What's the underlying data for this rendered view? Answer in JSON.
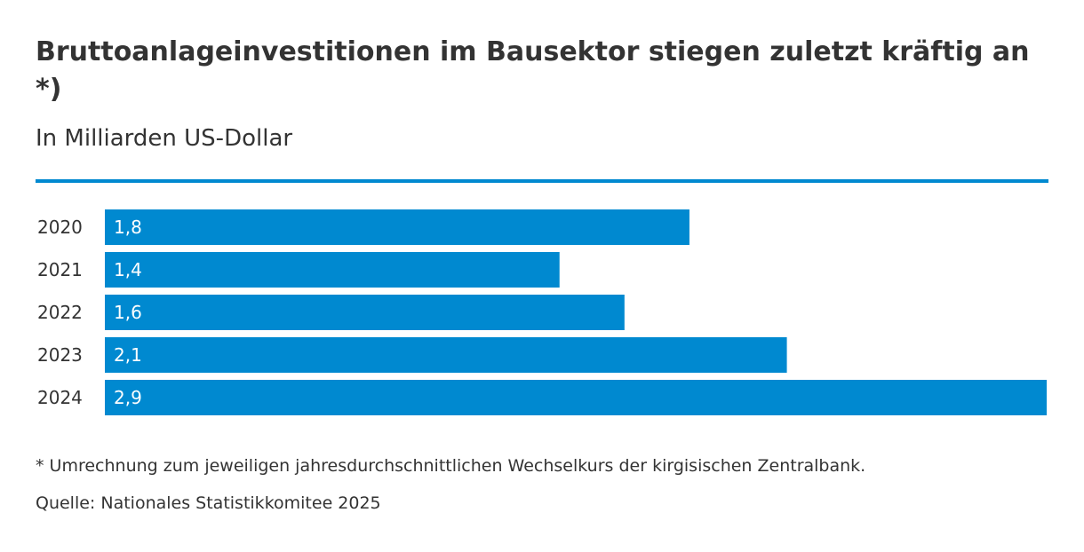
{
  "header": {
    "title": "Bruttoanlageinvestitionen im Bausektor stiegen zuletzt kräftig an *)",
    "subtitle": "In Milliarden US-Dollar"
  },
  "colors": {
    "accent": "#0089d0",
    "bar": "#0089d0",
    "bar_label": "#ffffff",
    "text": "#333333"
  },
  "chart_data": {
    "type": "bar",
    "orientation": "horizontal",
    "categories": [
      "2020",
      "2021",
      "2022",
      "2023",
      "2024"
    ],
    "values": [
      1.8,
      1.4,
      1.6,
      2.1,
      2.9
    ],
    "value_labels": [
      "1,8",
      "1,4",
      "1,6",
      "2,1",
      "2,9"
    ],
    "title": "Bruttoanlageinvestitionen im Bausektor stiegen zuletzt kräftig an *)",
    "subtitle": "In Milliarden US-Dollar",
    "xlim": [
      0,
      2.9
    ],
    "grid": false,
    "legend": "none"
  },
  "footer": {
    "footnote": "* Umrechnung zum jeweiligen jahresdurchschnittlichen Wechselkurs der kirgisischen Zentralbank.",
    "source": "Quelle: Nationales Statistikkomitee 2025"
  }
}
